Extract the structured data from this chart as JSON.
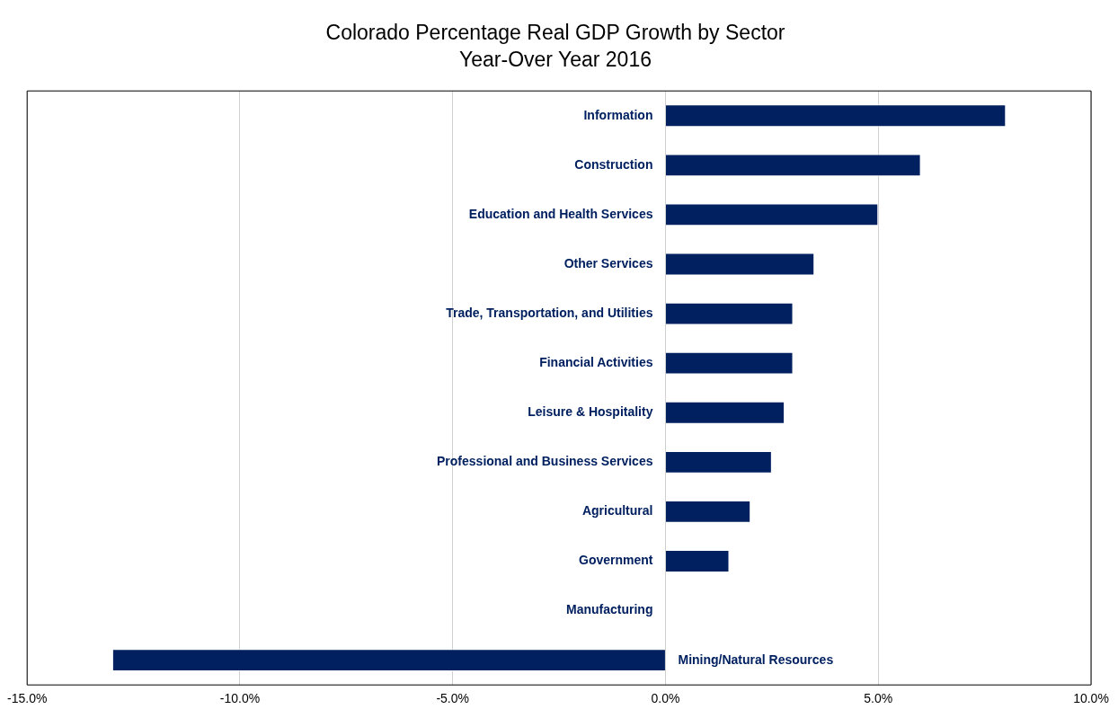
{
  "chart_data": {
    "type": "bar",
    "orientation": "horizontal",
    "title": "Colorado Percentage Real GDP Growth by Sector",
    "subtitle": "Year-Over Year 2016",
    "categories": [
      "Information",
      "Construction",
      "Education and Health Services",
      "Other Services",
      "Trade, Transportation, and Utilities",
      "Financial Activities",
      "Leisure & Hospitality",
      "Professional and Business Services",
      "Agricultural",
      "Government",
      "Manufacturing",
      "Mining/Natural Resources"
    ],
    "values": [
      8.0,
      6.0,
      5.0,
      3.5,
      3.0,
      3.0,
      2.8,
      2.5,
      2.0,
      1.5,
      0,
      -13.0
    ],
    "color": "#002060",
    "xlim": [
      -15,
      10
    ],
    "xticks": [
      {
        "value": -15,
        "label": "-15.0%"
      },
      {
        "value": -10,
        "label": "-10.0%"
      },
      {
        "value": -5,
        "label": "-5.0%"
      },
      {
        "value": 0,
        "label": "0.0%"
      },
      {
        "value": 5,
        "label": "5.0%"
      },
      {
        "value": 10,
        "label": "10.0%"
      }
    ],
    "grid": "x",
    "legend": false
  }
}
